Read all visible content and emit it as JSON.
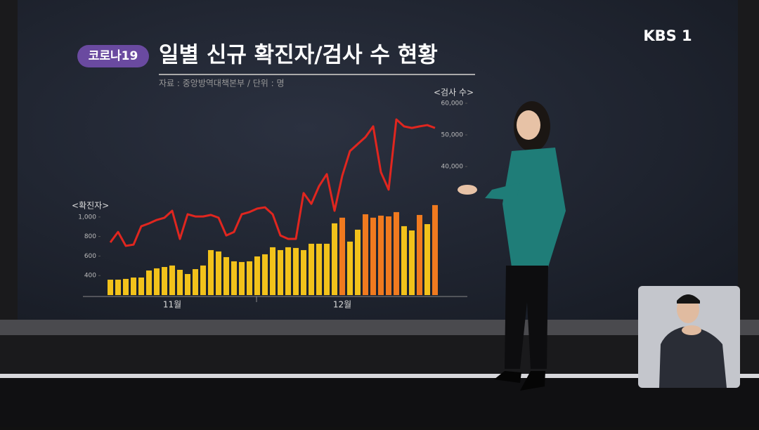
{
  "badge": "코로나19",
  "logo": "KBS 1",
  "chart_data": {
    "type": "bar-line",
    "title": "일별 신규 확진자/검사 수 현황",
    "subtitle": "자료 : 중앙방역대책본부 / 단위 : 명",
    "y_label": "<확진자>",
    "y2_label": "<검사 수>",
    "categories": [
      null,
      null,
      null,
      null,
      null,
      null,
      null,
      null,
      "11월",
      null,
      null,
      null,
      null,
      null,
      null,
      null,
      null,
      null,
      null,
      null,
      null,
      null,
      null,
      null,
      null,
      null,
      null,
      null,
      null,
      null,
      "12월",
      null,
      null,
      null,
      null,
      null,
      null,
      null,
      null,
      null,
      null,
      null,
      null
    ],
    "ylim": [
      200,
      1150
    ],
    "yticks": [
      400,
      600,
      800,
      {
        "value": 1000,
        "label": "1,000"
      }
    ],
    "y2lim": [
      10000,
      60000
    ],
    "y2ticks": [
      {
        "value": 40000,
        "label": "40,000"
      },
      {
        "value": 50000,
        "label": "50,000"
      },
      {
        "value": 60000,
        "label": "60,000"
      }
    ],
    "series": [
      {
        "name": "확진자",
        "colors": [
          "#f2c21b",
          "#f2c21b",
          "#f2c21b",
          "#f2c21b",
          "#f2c21b",
          "#f2c21b",
          "#f2c21b",
          "#f2c21b",
          "#f2c21b",
          "#f2c21b",
          "#f2c21b",
          "#f2c21b",
          "#f2c21b",
          "#f2c21b",
          "#f2c21b",
          "#f2c21b",
          "#f2c21b",
          "#f2c21b",
          "#f2c21b",
          "#f2c21b",
          "#f2c21b",
          "#f2c21b",
          "#f2c21b",
          "#f2c21b",
          "#f2c21b",
          "#f2c21b",
          "#f2c21b",
          "#f2c21b",
          "#f2c21b",
          "#f2c21b",
          "#f07a1f",
          "#f2c21b",
          "#f2c21b",
          "#f07a1f",
          "#f07a1f",
          "#f07a1f",
          "#f07a1f",
          "#f07a1f",
          "#f2c21b",
          "#f2c21b",
          "#f07a1f",
          "#f2c21b",
          "#f07a1f"
        ],
        "values": [
          358,
          358,
          366,
          380,
          380,
          452,
          474,
          488,
          503,
          459,
          416,
          466,
          503,
          661,
          647,
          589,
          546,
          539,
          546,
          596,
          618,
          690,
          661,
          690,
          683,
          661,
          726,
          726,
          726,
          935,
          993,
          748,
          870,
          1028,
          993,
          1014,
          1006,
          1050,
          906,
          862,
          1021,
          927,
          1122
        ]
      },
      {
        "name": "검사 수",
        "axis": "y2",
        "color": "#e0261f",
        "values": [
          16000,
          19300,
          14900,
          15300,
          21100,
          22000,
          23100,
          23800,
          26000,
          17100,
          24900,
          24200,
          24200,
          24700,
          23800,
          18200,
          19300,
          24900,
          25600,
          26700,
          27100,
          24900,
          18200,
          17100,
          17100,
          31600,
          28200,
          33800,
          37600,
          26000,
          37100,
          44900,
          47100,
          49300,
          52700,
          38200,
          32700,
          54900,
          52700,
          52200,
          52700,
          53100,
          52200
        ]
      }
    ]
  }
}
